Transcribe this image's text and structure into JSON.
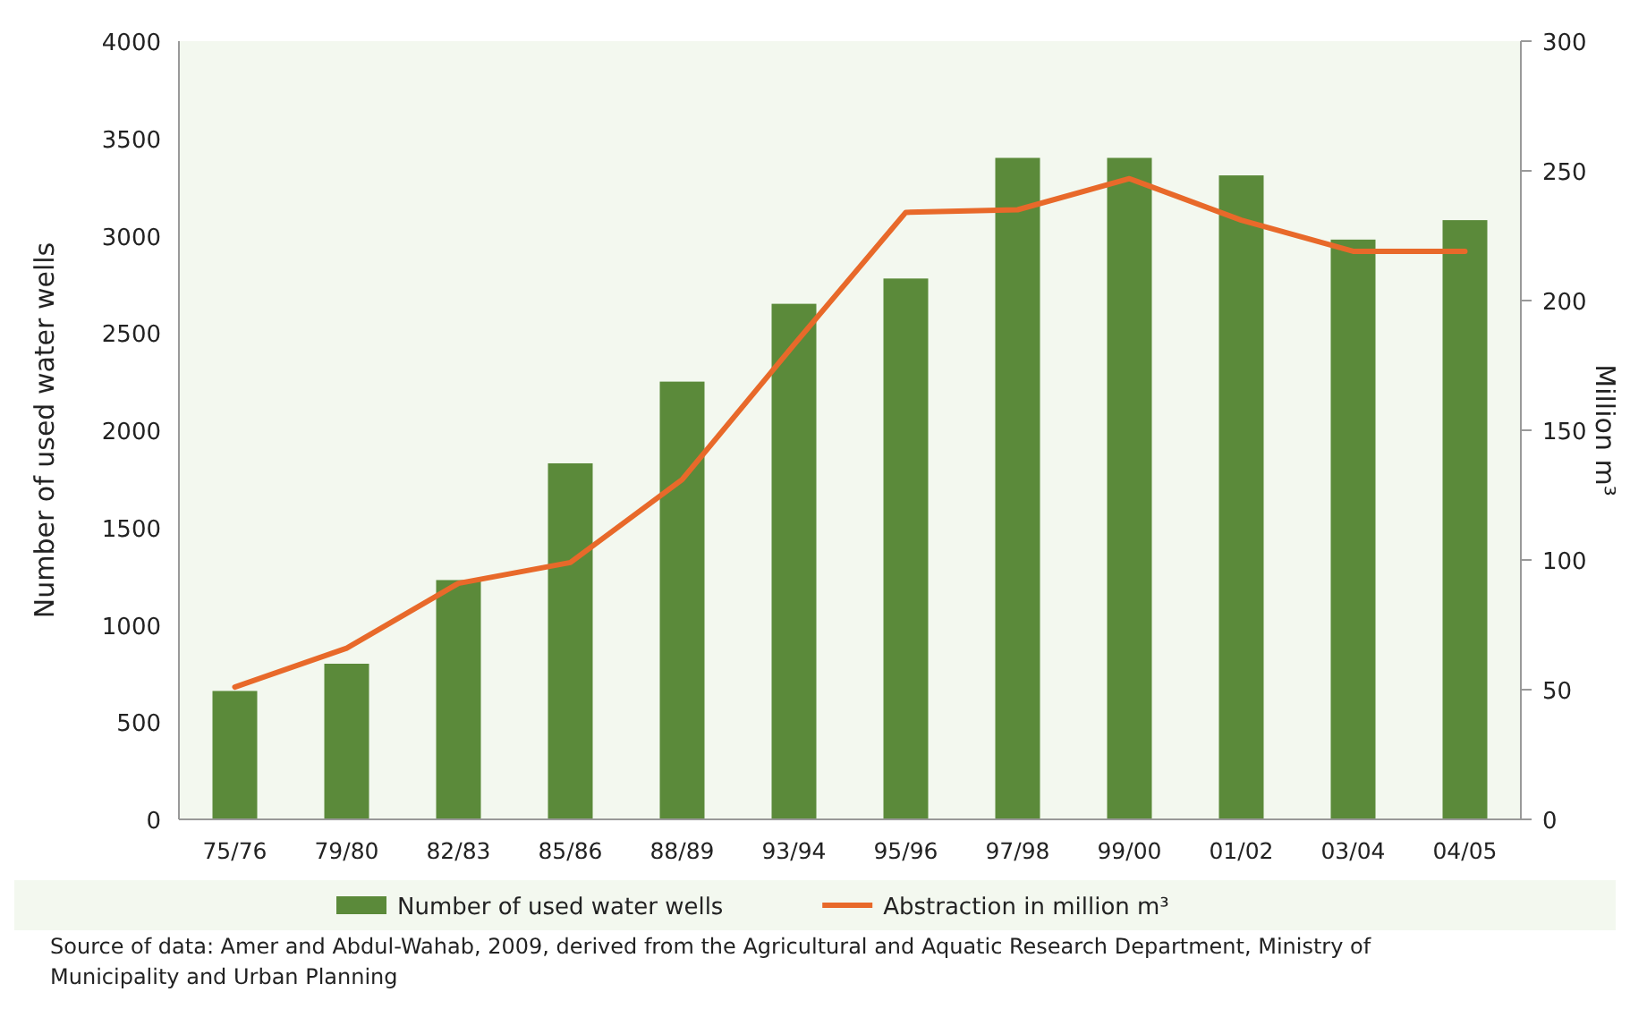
{
  "chart_data": {
    "type": "bar",
    "ylabel": "Number of used water wells",
    "y2label": "Million m³",
    "categories": [
      "75/76",
      "79/80",
      "82/83",
      "85/86",
      "88/89",
      "93/94",
      "95/96",
      "97/98",
      "99/00",
      "01/02",
      "03/04",
      "04/05"
    ],
    "series": [
      {
        "name": "Number of used water wells",
        "color": "#5b8a3a",
        "values": [
          660,
          800,
          1230,
          1830,
          2250,
          2650,
          2780,
          3400,
          3400,
          3310,
          2980,
          3080
        ]
      },
      {
        "name": "Abstraction in million m³",
        "type": "line",
        "axis": "y2",
        "color": "#e8692a",
        "values": [
          51,
          66,
          91,
          99,
          131,
          183,
          234,
          235,
          247,
          231,
          219,
          219
        ]
      }
    ],
    "ylim": [
      0,
      4000
    ],
    "yticks": [
      0,
      500,
      1000,
      1500,
      2000,
      2500,
      3000,
      3500,
      4000
    ],
    "y2lim": [
      0,
      300
    ],
    "y2ticks": [
      0,
      50,
      100,
      150,
      200,
      250,
      300
    ],
    "legend": "bottom",
    "grid": false,
    "marker": "none",
    "line_style": "solid",
    "annotations": [
      "Source of data: Amer and Abdul-Wahab, 2009, derived from the Agricultural and Aquatic Research Department, Ministry of Municipality and Urban Planning"
    ]
  }
}
